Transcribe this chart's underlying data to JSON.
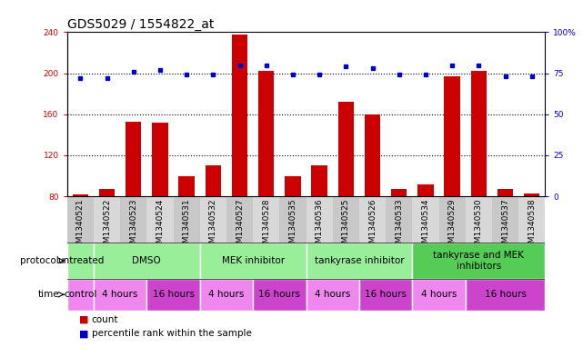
{
  "title": "GDS5029 / 1554822_at",
  "samples": [
    "GSM1340521",
    "GSM1340522",
    "GSM1340523",
    "GSM1340524",
    "GSM1340531",
    "GSM1340532",
    "GSM1340527",
    "GSM1340528",
    "GSM1340535",
    "GSM1340536",
    "GSM1340525",
    "GSM1340526",
    "GSM1340533",
    "GSM1340534",
    "GSM1340529",
    "GSM1340530",
    "GSM1340537",
    "GSM1340538"
  ],
  "counts": [
    82,
    87,
    153,
    152,
    100,
    110,
    238,
    202,
    100,
    110,
    172,
    160,
    87,
    92,
    197,
    202,
    87,
    83
  ],
  "percentiles": [
    72,
    72,
    76,
    77,
    74,
    74,
    80,
    80,
    74,
    74,
    79,
    78,
    74,
    74,
    80,
    80,
    73,
    73
  ],
  "ylim_left": [
    80,
    240
  ],
  "ylim_right": [
    0,
    100
  ],
  "yticks_left": [
    80,
    120,
    160,
    200,
    240
  ],
  "yticks_right": [
    0,
    25,
    50,
    75,
    100
  ],
  "bar_color": "#cc0000",
  "dot_color": "#0000cc",
  "proto_groups": [
    {
      "label": "untreated",
      "start": 0,
      "end": 1,
      "color": "#99ee99"
    },
    {
      "label": "DMSO",
      "start": 1,
      "end": 5,
      "color": "#99ee99"
    },
    {
      "label": "MEK inhibitor",
      "start": 5,
      "end": 9,
      "color": "#99ee99"
    },
    {
      "label": "tankyrase inhibitor",
      "start": 9,
      "end": 13,
      "color": "#99ee99"
    },
    {
      "label": "tankyrase and MEK\ninhibitors",
      "start": 13,
      "end": 18,
      "color": "#55cc55"
    }
  ],
  "time_groups": [
    {
      "label": "control",
      "start": 0,
      "end": 1,
      "color": "#ee88ee"
    },
    {
      "label": "4 hours",
      "start": 1,
      "end": 3,
      "color": "#ee88ee"
    },
    {
      "label": "16 hours",
      "start": 3,
      "end": 5,
      "color": "#cc44cc"
    },
    {
      "label": "4 hours",
      "start": 5,
      "end": 7,
      "color": "#ee88ee"
    },
    {
      "label": "16 hours",
      "start": 7,
      "end": 9,
      "color": "#cc44cc"
    },
    {
      "label": "4 hours",
      "start": 9,
      "end": 11,
      "color": "#ee88ee"
    },
    {
      "label": "16 hours",
      "start": 11,
      "end": 13,
      "color": "#cc44cc"
    },
    {
      "label": "4 hours",
      "start": 13,
      "end": 15,
      "color": "#ee88ee"
    },
    {
      "label": "16 hours",
      "start": 15,
      "end": 18,
      "color": "#cc44cc"
    }
  ],
  "title_fontsize": 10,
  "tick_fontsize": 6.5,
  "annotation_fontsize": 7.5,
  "legend_fontsize": 7.5,
  "xtick_bg": "#d0d0d0"
}
